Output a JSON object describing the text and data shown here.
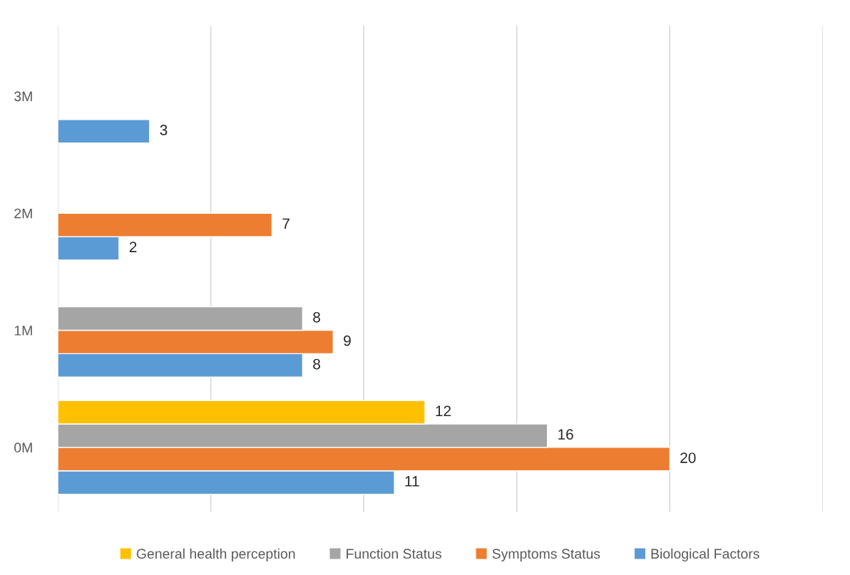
{
  "chart_data": {
    "type": "bar",
    "orientation": "horizontal",
    "categories": [
      "3M",
      "2M",
      "1M",
      "0M"
    ],
    "series": [
      {
        "name": "Biological Factors",
        "color": "#5b9bd5",
        "values": [
          3,
          2,
          8,
          11
        ]
      },
      {
        "name": "Symptoms Status",
        "color": "#ed7d31",
        "values": [
          null,
          7,
          9,
          20
        ]
      },
      {
        "name": "Function Status",
        "color": "#a5a5a5",
        "values": [
          null,
          null,
          8,
          16
        ]
      },
      {
        "name": "General health perception",
        "color": "#ffc000",
        "values": [
          null,
          null,
          null,
          12
        ]
      }
    ],
    "xlim": [
      0,
      25
    ],
    "xticks": [
      {
        "value": 0,
        "label": null
      },
      {
        "value": 5,
        "label": null
      },
      {
        "value": 10,
        "label": null
      },
      {
        "value": 15,
        "label": null
      },
      {
        "value": 20,
        "label": null
      },
      {
        "value": 25,
        "label": null
      }
    ],
    "tick_labels": "y",
    "grid": "x",
    "legend": "bottom",
    "data_labels": true
  }
}
